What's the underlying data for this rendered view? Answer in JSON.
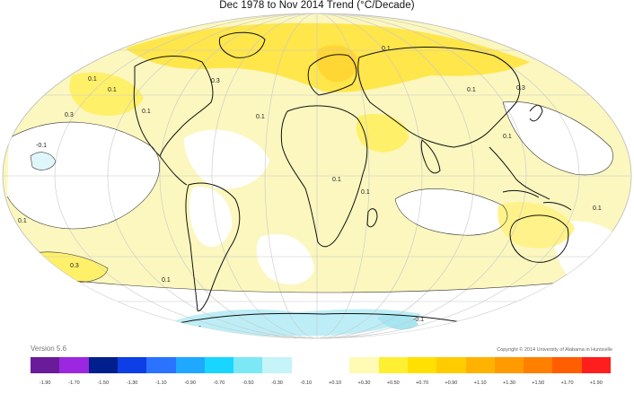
{
  "title": "Dec 1978 to Nov 2014 Trend (°C/Decade)",
  "version_label": "Version 5.6",
  "copyright": "Copyright © 2014 University of Alabama in Huntsville",
  "projection": "mollweide-style elliptical world map",
  "contour_labels": [
    "0.1",
    "0.1",
    "0.3",
    "0.1",
    "0.3",
    "0.1",
    "0.1",
    "0.1",
    "0.3",
    "0.1",
    "0.1",
    "0.1",
    "0.1",
    "0.1",
    "0.3",
    "0.1",
    "-0.1",
    "-0.1",
    "0.1"
  ],
  "legend": {
    "colors": [
      "#6a1b9a",
      "#9c27e0",
      "#001f8c",
      "#0d3ee6",
      "#2a73ff",
      "#1fa8ff",
      "#19d6ff",
      "#7de8f5",
      "#c6f4f8",
      "#ffffff",
      "#ffffff",
      "#fffab4",
      "#ffef33",
      "#ffe000",
      "#ffcc00",
      "#ffb300",
      "#ff9a00",
      "#ff7f00",
      "#ff5e00",
      "#ff1e1e"
    ],
    "ticks": [
      "-1.90",
      "-1.70",
      "-1.50",
      "-1.30",
      "-1.10",
      "-0.90",
      "-0.70",
      "-0.50",
      "-0.30",
      "-0.10",
      "+0.10",
      "+0.30",
      "+0.50",
      "+0.70",
      "+0.90",
      "+1.10",
      "+1.30",
      "+1.50",
      "+1.70",
      "+1.90"
    ]
  }
}
